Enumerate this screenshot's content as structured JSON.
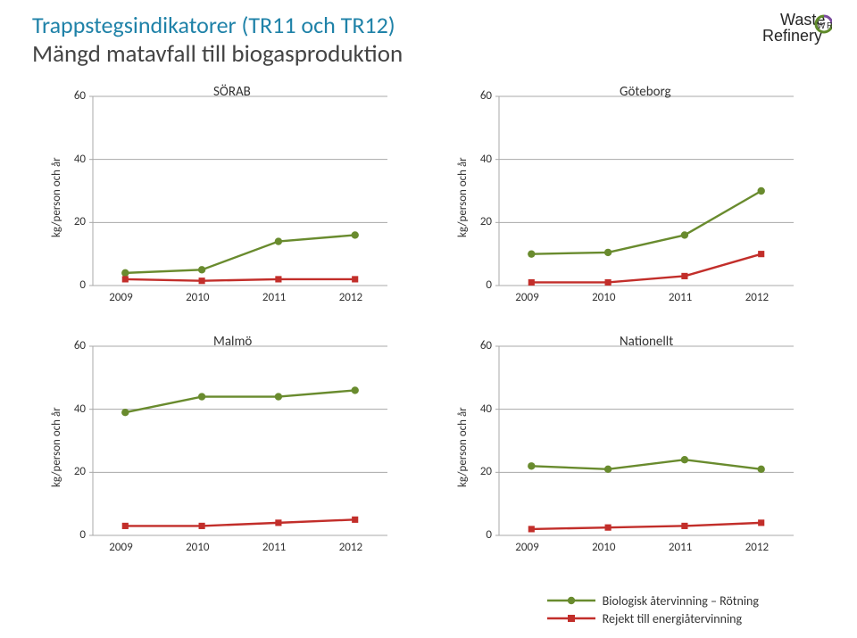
{
  "title_line1": "Trappstegsindikatorer (TR11 och TR12)",
  "title_line2": "Mängd matavfall till biogasproduktion",
  "logo_text1": "Waste",
  "logo_text2": "Refinery",
  "legend1": "Biologisk återvinning – Rötning",
  "legend2": "Rejekt till energiåtervinning",
  "series_colors": {
    "green": "#698b2e",
    "red": "#c22e2a"
  },
  "axis": {
    "y_label": "kg/person och år",
    "y_ticks": [
      0,
      20,
      40,
      60
    ],
    "x_ticks": [
      "2009",
      "2010",
      "2011",
      "2012"
    ]
  },
  "chart_style": {
    "line_width": 2.4,
    "marker_radius": 4.2,
    "grid_color": "#a8a8a8",
    "axis_color": "#a8a8a8",
    "title_fontsize": 15,
    "tick_fontsize": 13,
    "plot_bg": "#ffffff"
  },
  "charts": [
    {
      "title": "SÖRAB",
      "green": [
        4,
        5,
        14,
        16
      ],
      "red": [
        2,
        1.5,
        2,
        2
      ]
    },
    {
      "title": "Göteborg",
      "green": [
        10,
        10.5,
        16,
        30
      ],
      "red": [
        1,
        1,
        3,
        10
      ]
    },
    {
      "title": "Malmö",
      "green": [
        39,
        44,
        44,
        46
      ],
      "red": [
        3,
        3,
        4,
        5
      ]
    },
    {
      "title": "Nationellt",
      "green": [
        22,
        21,
        24,
        21
      ],
      "red": [
        2,
        2.5,
        3,
        4
      ]
    }
  ]
}
